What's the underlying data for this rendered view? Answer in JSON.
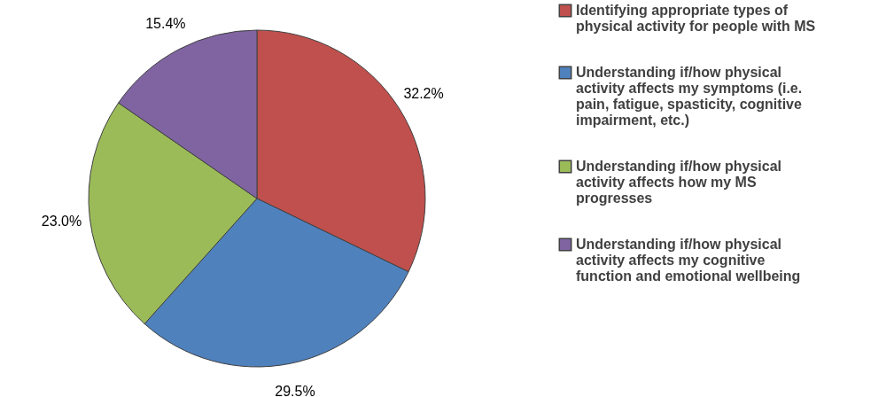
{
  "chart_data": {
    "type": "pie",
    "categories": [
      "Identifying appropriate types of physical activity for people with MS",
      "Understanding if/how physical activity affects my symptoms (i.e. pain, fatigue, spasticity, cognitive impairment, etc.)",
      "Understanding if/how physical activity affects how my MS progresses",
      "Understanding if/how physical activity affects my cognitive function and emotional wellbeing"
    ],
    "values": [
      32.2,
      29.5,
      23.0,
      15.4
    ],
    "colors": [
      "#c0504d",
      "#4f81bd",
      "#9bbb59",
      "#8064a2"
    ],
    "value_labels": [
      "32.2%",
      "29.5%",
      "23.0%",
      "15.4%"
    ],
    "legend": "right"
  }
}
